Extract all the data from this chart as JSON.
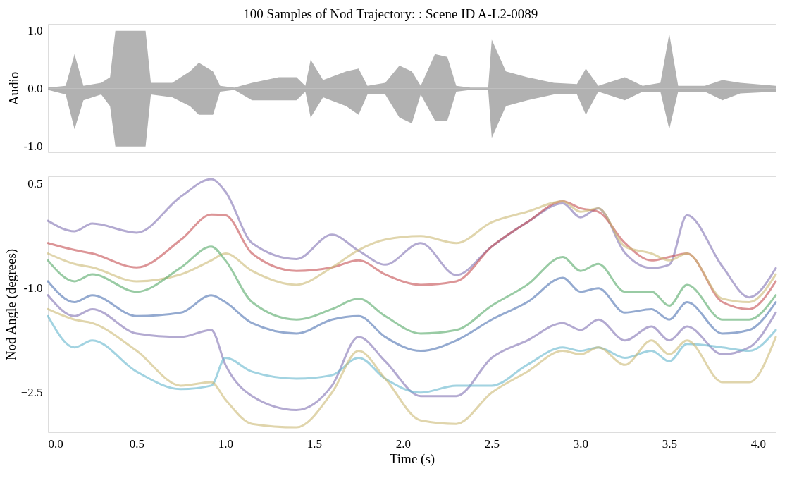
{
  "chart_data": [
    {
      "type": "area",
      "title": "100 Samples of Nod Trajectory: : Scene ID A-L2-0089",
      "ylabel": "Audio",
      "tick_labels": "y",
      "grid": false,
      "legend": false,
      "x": [
        0.0,
        0.1,
        0.15,
        0.2,
        0.3,
        0.35,
        0.38,
        0.55,
        0.58,
        0.7,
        0.8,
        0.85,
        0.93,
        0.97,
        1.05,
        1.15,
        1.3,
        1.4,
        1.45,
        1.48,
        1.55,
        1.68,
        1.75,
        1.8,
        1.9,
        1.98,
        2.05,
        2.1,
        2.18,
        2.25,
        2.3,
        2.38,
        2.48,
        2.5,
        2.58,
        2.7,
        2.85,
        2.98,
        3.03,
        3.1,
        3.25,
        3.35,
        3.45,
        3.5,
        3.55,
        3.7,
        3.8,
        3.9,
        4.1
      ],
      "xlim": [
        0.0,
        4.1
      ],
      "ylim": [
        -1.1,
        1.12
      ],
      "yticks": [
        {
          "value": -1.0,
          "label": "-1.0"
        },
        {
          "value": 0.0,
          "label": "0.0"
        },
        {
          "value": 1.0,
          "label": "1.0"
        }
      ],
      "series": [
        {
          "color": "#b3b3b3",
          "values": [
            0.02,
            0.05,
            0.6,
            0.05,
            0.1,
            0.2,
            1.0,
            1.0,
            0.1,
            0.1,
            0.3,
            0.45,
            0.3,
            0.05,
            0.02,
            0.1,
            0.2,
            0.2,
            0.05,
            0.5,
            0.15,
            0.3,
            0.35,
            0.05,
            0.1,
            0.4,
            0.3,
            0.05,
            0.6,
            0.55,
            0.05,
            0.02,
            0.02,
            0.85,
            0.3,
            0.2,
            0.1,
            0.08,
            0.35,
            0.05,
            0.2,
            0.05,
            0.1,
            0.95,
            0.05,
            0.05,
            0.15,
            0.1,
            0.05
          ]
        },
        {
          "color": "#b1b1b1",
          "values": [
            -0.02,
            -0.1,
            -0.7,
            -0.2,
            -0.1,
            -0.3,
            -1.0,
            -1.0,
            -0.1,
            -0.15,
            -0.3,
            -0.45,
            -0.45,
            -0.05,
            -0.02,
            -0.2,
            -0.2,
            -0.2,
            -0.05,
            -0.5,
            -0.15,
            -0.3,
            -0.45,
            -0.1,
            -0.1,
            -0.5,
            -0.6,
            -0.1,
            -0.55,
            -0.55,
            -0.05,
            -0.02,
            -0.02,
            -0.85,
            -0.3,
            -0.2,
            -0.1,
            -0.1,
            -0.45,
            -0.05,
            -0.2,
            -0.05,
            -0.05,
            -0.7,
            -0.05,
            -0.05,
            -0.2,
            -0.08,
            -0.05
          ]
        }
      ]
    },
    {
      "type": "line",
      "xlabel": "Time (s)",
      "ylabel": "Nod Angle (degrees)",
      "grid": false,
      "legend": false,
      "marker": "none",
      "line_style": "solid",
      "x": [
        0,
        0.15,
        0.25,
        0.5,
        0.75,
        0.92,
        1.0,
        1.15,
        1.4,
        1.6,
        1.75,
        1.9,
        2.1,
        2.3,
        2.5,
        2.7,
        2.9,
        3.0,
        3.1,
        3.25,
        3.4,
        3.5,
        3.6,
        3.8,
        3.95,
        4.1
      ],
      "xlim": [
        0.0,
        4.1
      ],
      "ylim": [
        -3.07,
        0.61
      ],
      "xticks": [
        {
          "value": 0,
          "label": "0.0"
        },
        0.5,
        {
          "value": 1,
          "label": "1.0"
        },
        1.5,
        {
          "value": 2,
          "label": "2.0"
        },
        2.5,
        {
          "value": 3,
          "label": "3.0"
        },
        3.5,
        {
          "value": 4,
          "label": "4.0"
        }
      ],
      "yticks": [
        -2.5,
        {
          "value": -1.0,
          "label": "-1.0"
        },
        0.5
      ],
      "series": [
        {
          "color": "#8172b2",
          "values": [
            -0.03,
            -0.18,
            -0.07,
            -0.2,
            0.32,
            0.57,
            0.39,
            -0.35,
            -0.58,
            -0.23,
            -0.46,
            -0.66,
            -0.35,
            -0.81,
            -0.4,
            -0.05,
            0.22,
            0.02,
            0.15,
            -0.49,
            -0.71,
            -0.66,
            0.05,
            -0.69,
            -1.13,
            -0.71
          ]
        },
        {
          "color": "#c44e52",
          "values": [
            -0.35,
            -0.45,
            -0.5,
            -0.7,
            -0.3,
            0.06,
            0.05,
            -0.5,
            -0.75,
            -0.7,
            -0.6,
            -0.8,
            -0.95,
            -0.9,
            -0.4,
            -0.05,
            0.25,
            0.15,
            0.1,
            -0.35,
            -0.6,
            -0.55,
            -0.5,
            -1.2,
            -1.3,
            -0.9
          ]
        },
        {
          "color": "#ccb974",
          "values": [
            -0.5,
            -0.65,
            -0.7,
            -0.9,
            -0.8,
            -0.6,
            -0.5,
            -0.75,
            -0.95,
            -0.7,
            -0.45,
            -0.3,
            -0.25,
            -0.35,
            -0.05,
            0.1,
            0.25,
            0.1,
            0.15,
            -0.4,
            -0.5,
            -0.6,
            -0.5,
            -1.15,
            -1.2,
            -0.8
          ]
        },
        {
          "color": "#55a868",
          "values": [
            -0.6,
            -0.9,
            -0.8,
            -1.05,
            -0.7,
            -0.4,
            -0.6,
            -1.2,
            -1.45,
            -1.3,
            -1.15,
            -1.4,
            -1.65,
            -1.6,
            -1.25,
            -0.95,
            -0.55,
            -0.75,
            -0.65,
            -1.05,
            -1.05,
            -1.25,
            -0.95,
            -1.45,
            -1.45,
            -1.1
          ]
        },
        {
          "color": "#4c72b0",
          "values": [
            -0.9,
            -1.2,
            -1.1,
            -1.4,
            -1.35,
            -1.1,
            -1.2,
            -1.5,
            -1.65,
            -1.45,
            -1.4,
            -1.7,
            -1.9,
            -1.75,
            -1.45,
            -1.2,
            -0.85,
            -1.05,
            -1.0,
            -1.35,
            -1.3,
            -1.45,
            -1.2,
            -1.65,
            -1.6,
            -1.2
          ]
        },
        {
          "color": "#8172b2",
          "values": [
            -1.1,
            -1.4,
            -1.3,
            -1.65,
            -1.7,
            -1.6,
            -2.1,
            -2.55,
            -2.75,
            -2.4,
            -1.7,
            -2.05,
            -2.55,
            -2.55,
            -2.0,
            -1.75,
            -1.5,
            -1.6,
            -1.45,
            -1.75,
            -1.55,
            -1.75,
            -1.55,
            -1.95,
            -1.85,
            -1.35
          ]
        },
        {
          "color": "#64b5cd",
          "values": [
            -1.4,
            -1.85,
            -1.75,
            -2.2,
            -2.45,
            -2.4,
            -2.0,
            -2.2,
            -2.3,
            -2.25,
            -2.0,
            -2.3,
            -2.5,
            -2.4,
            -2.4,
            -2.1,
            -1.85,
            -1.9,
            -1.85,
            -2.0,
            -1.9,
            -2.05,
            -1.8,
            -1.85,
            -1.9,
            -1.6
          ]
        },
        {
          "color": "#ccb974",
          "values": [
            -1.3,
            -1.45,
            -1.5,
            -1.9,
            -2.4,
            -2.35,
            -2.6,
            -2.95,
            -3.0,
            -2.5,
            -1.9,
            -2.3,
            -2.9,
            -2.95,
            -2.5,
            -2.2,
            -1.9,
            -1.95,
            -1.85,
            -2.1,
            -1.75,
            -1.95,
            -1.75,
            -2.35,
            -2.35,
            -1.7
          ]
        }
      ]
    }
  ]
}
